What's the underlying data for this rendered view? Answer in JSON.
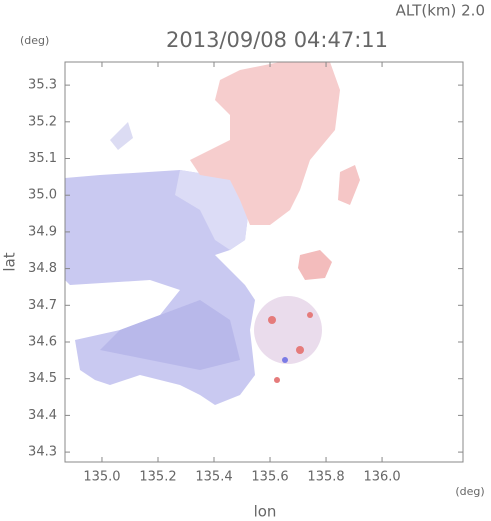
{
  "chart_data": {
    "type": "map",
    "title": "2013/09/08 04:47:11",
    "subtitle": "ALT(km) 2.0",
    "y_unit": "(deg)",
    "x_unit": "(deg)",
    "x_label": "lon",
    "y_label": "lat",
    "xlim": [
      134.868,
      136.289
    ],
    "ylim": [
      34.273,
      35.363
    ],
    "xticks": [
      {
        "value": 135,
        "label": "135.0"
      },
      135.2,
      135.4,
      135.6,
      135.8,
      {
        "value": 136,
        "label": "136.0"
      }
    ],
    "yticks": [
      34.3,
      34.4,
      34.5,
      34.6,
      34.7,
      34.8,
      34.9,
      {
        "value": 35,
        "label": "35.0"
      },
      35.1,
      35.2,
      35.3
    ],
    "grid": false
  }
}
